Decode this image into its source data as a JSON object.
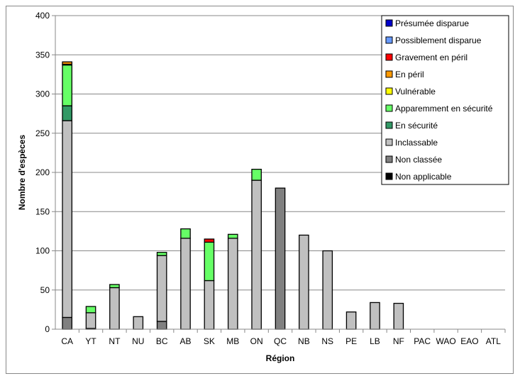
{
  "chart_data": {
    "type": "bar",
    "stacked": true,
    "title": "",
    "xlabel": "Région",
    "ylabel": "Nombre d'espèces",
    "ylim": [
      0,
      400
    ],
    "yticks": [
      0,
      50,
      100,
      150,
      200,
      250,
      300,
      350,
      400
    ],
    "grid": true,
    "legend_position": "top-right",
    "categories": [
      "CA",
      "YT",
      "NT",
      "NU",
      "BC",
      "AB",
      "SK",
      "MB",
      "ON",
      "QC",
      "NB",
      "NS",
      "PE",
      "LB",
      "NF",
      "PAC",
      "WAO",
      "EAO",
      "ATL"
    ],
    "series": [
      {
        "name": "Non applicable",
        "color": "#000000",
        "values": [
          0,
          1,
          0,
          0,
          0,
          0,
          0,
          0,
          0,
          0,
          0,
          0,
          0,
          0,
          0,
          0,
          0,
          0,
          0
        ]
      },
      {
        "name": "Non classée",
        "color": "#808080",
        "values": [
          15,
          0,
          0,
          0,
          10,
          0,
          0,
          0,
          0,
          180,
          0,
          0,
          0,
          0,
          0,
          0,
          0,
          0,
          0
        ]
      },
      {
        "name": "Inclassable",
        "color": "#c0c0c0",
        "values": [
          251,
          20,
          53,
          16,
          84,
          116,
          62,
          116,
          190,
          0,
          120,
          100,
          22,
          34,
          33,
          0,
          0,
          0,
          0
        ]
      },
      {
        "name": "En sécurité",
        "color": "#339966",
        "values": [
          19,
          0,
          0,
          0,
          0,
          0,
          0,
          0,
          0,
          0,
          0,
          0,
          0,
          0,
          0,
          0,
          0,
          0,
          0
        ]
      },
      {
        "name": "Apparemment en sécurité",
        "color": "#66ff66",
        "values": [
          52,
          8,
          4,
          0,
          4,
          12,
          49,
          5,
          14,
          0,
          0,
          0,
          0,
          0,
          0,
          0,
          0,
          0,
          0
        ]
      },
      {
        "name": "Vulnérable",
        "color": "#ffff00",
        "values": [
          1,
          0,
          0,
          0,
          0,
          0,
          0,
          0,
          0,
          0,
          0,
          0,
          0,
          0,
          0,
          0,
          0,
          0,
          0
        ]
      },
      {
        "name": "En péril",
        "color": "#ff9900",
        "values": [
          3,
          0,
          0,
          0,
          0,
          0,
          0,
          0,
          0,
          0,
          0,
          0,
          0,
          0,
          0,
          0,
          0,
          0,
          0
        ]
      },
      {
        "name": "Gravement en péril",
        "color": "#ff0000",
        "values": [
          0,
          0,
          0,
          0,
          0,
          0,
          4,
          0,
          0,
          0,
          0,
          0,
          0,
          0,
          0,
          0,
          0,
          0,
          0
        ]
      },
      {
        "name": "Possiblement disparue",
        "color": "#6699ff",
        "values": [
          0,
          0,
          0,
          0,
          0,
          0,
          0,
          0,
          0,
          0,
          0,
          0,
          0,
          0,
          0,
          0,
          0,
          0,
          0
        ]
      },
      {
        "name": "Présumée disparue",
        "color": "#0000cc",
        "values": [
          0,
          0,
          0,
          0,
          0,
          0,
          0,
          0,
          0,
          0,
          0,
          0,
          0,
          0,
          0,
          0,
          0,
          0,
          0
        ]
      }
    ]
  }
}
